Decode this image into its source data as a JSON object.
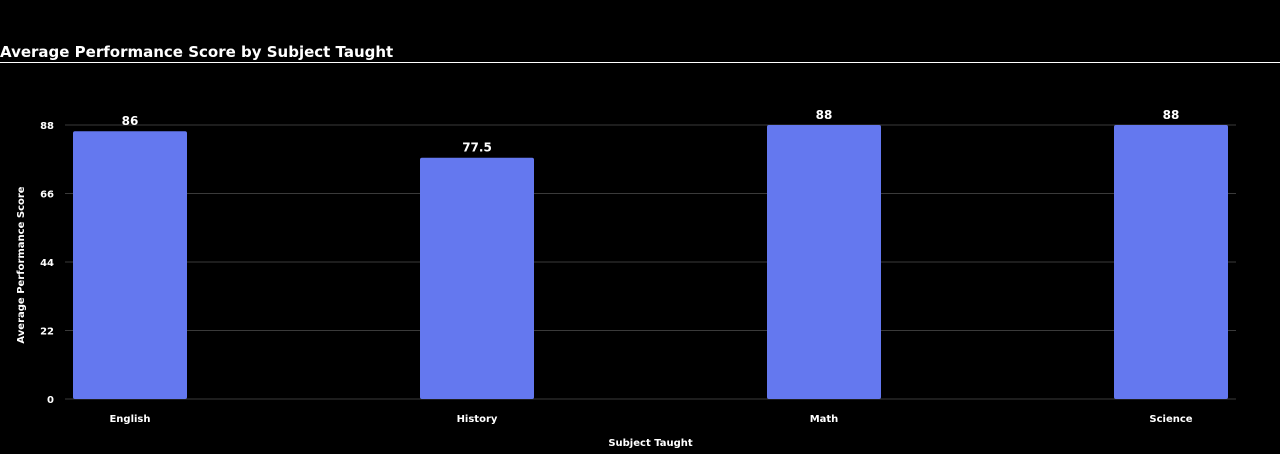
{
  "chart_data": {
    "type": "bar",
    "title": "Average Performance Score by Subject Taught",
    "xlabel": "Subject Taught",
    "ylabel": "Average Performance Score",
    "categories": [
      "English",
      "History",
      "Math",
      "Science"
    ],
    "values": [
      86,
      77.5,
      88,
      88
    ],
    "data_labels": [
      "86",
      "77.5",
      "88",
      "88"
    ],
    "yticks": [
      0,
      22,
      44,
      66,
      88
    ],
    "ylim": [
      0,
      88
    ],
    "grid": true,
    "legend": "none",
    "colors": {
      "bar": "#6478EF",
      "background": "#000000",
      "grid": "#3a3a3a",
      "text": "#ffffff"
    }
  }
}
